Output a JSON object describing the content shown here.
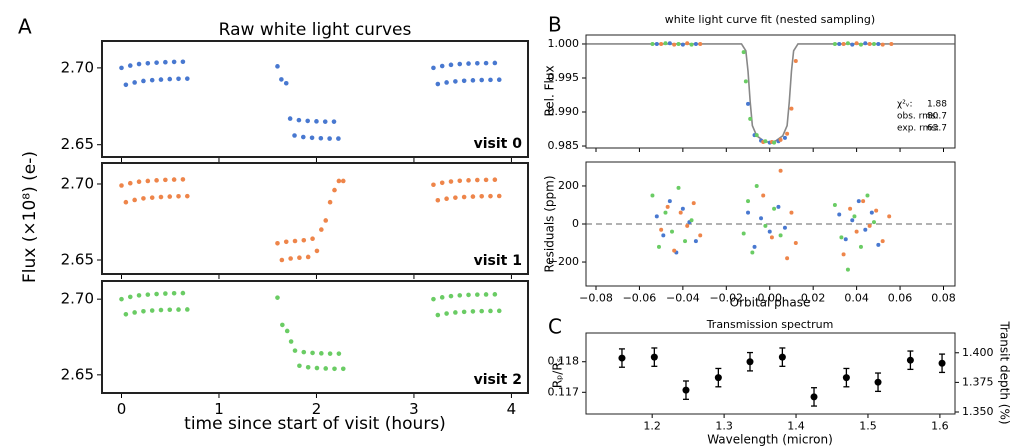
{
  "chart_data": [
    {
      "type": "scatter",
      "panel_label": "A",
      "title": "Raw white light curves",
      "annotation": "visit 0",
      "xlim": [
        -0.2,
        4.17
      ],
      "xticks": [
        0,
        1,
        2,
        3,
        4
      ],
      "ylim": [
        2.642,
        2.7175
      ],
      "yticks": [
        2.65,
        {
          "value": 2.7,
          "label": "2.70"
        }
      ],
      "series": [
        {
          "color": "#4878d0",
          "x": [
            0,
            0.09,
            0.18,
            0.27,
            0.36,
            0.45,
            0.54,
            0.63,
            0.045,
            0.135,
            0.225,
            0.315,
            0.405,
            0.495,
            0.585,
            0.675,
            1.6,
            1.64,
            1.69,
            1.73,
            1.82,
            1.91,
            2.0,
            2.09,
            2.18,
            1.775,
            1.865,
            1.955,
            2.045,
            2.135,
            2.225,
            3.2,
            3.29,
            3.38,
            3.47,
            3.56,
            3.65,
            3.74,
            3.83,
            3.245,
            3.335,
            3.425,
            3.515,
            3.605,
            3.695,
            3.785,
            3.875
          ],
          "values": [
            2.7,
            2.7015,
            2.7025,
            2.703,
            2.7034,
            2.7037,
            2.7039,
            2.704,
            2.689,
            2.6905,
            2.6915,
            2.692,
            2.6924,
            2.6927,
            2.6929,
            2.693,
            2.701,
            2.6925,
            2.69,
            2.667,
            2.666,
            2.6655,
            2.6652,
            2.665,
            2.665,
            2.656,
            2.655,
            2.6545,
            2.6542,
            2.654,
            2.654,
            2.7,
            2.7012,
            2.702,
            2.7025,
            2.7028,
            2.703,
            2.7031,
            2.7032,
            2.6895,
            2.6905,
            2.6912,
            2.6916,
            2.6919,
            2.6921,
            2.6922,
            2.6923
          ]
        }
      ]
    },
    {
      "type": "scatter",
      "ylabel": "Flux (×10⁸) (e-)",
      "annotation": "visit 1",
      "xlim": [
        -0.2,
        4.17
      ],
      "xticks": [
        0,
        1,
        2,
        3,
        4
      ],
      "ylim": [
        2.6408,
        2.7138
      ],
      "yticks": [
        2.65,
        {
          "value": 2.7,
          "label": "2.70"
        }
      ],
      "series": [
        {
          "color": "#ee854a",
          "x": [
            0,
            0.09,
            0.18,
            0.27,
            0.36,
            0.45,
            0.54,
            0.63,
            0.045,
            0.135,
            0.225,
            0.315,
            0.405,
            0.495,
            0.585,
            0.675,
            1.6,
            1.69,
            1.78,
            1.87,
            1.96,
            2.05,
            2.14,
            2.23,
            1.645,
            1.735,
            1.825,
            1.915,
            2.005,
            2.095,
            2.185,
            2.275,
            3.2,
            3.29,
            3.38,
            3.47,
            3.56,
            3.65,
            3.74,
            3.83,
            3.245,
            3.335,
            3.425,
            3.515,
            3.605,
            3.695,
            3.785,
            3.875
          ],
          "values": [
            2.699,
            2.7005,
            2.7015,
            2.702,
            2.7024,
            2.7027,
            2.7029,
            2.703,
            2.688,
            2.6895,
            2.6905,
            2.691,
            2.6914,
            2.6917,
            2.6919,
            2.692,
            2.661,
            2.662,
            2.6625,
            2.663,
            2.664,
            2.67,
            2.688,
            2.702,
            2.65,
            2.651,
            2.6515,
            2.652,
            2.656,
            2.676,
            2.696,
            2.702,
            2.6995,
            2.7008,
            2.7016,
            2.7021,
            2.7024,
            2.7026,
            2.7027,
            2.7028,
            2.6893,
            2.6903,
            2.691,
            2.6914,
            2.6917,
            2.6919,
            2.692,
            2.6921
          ]
        }
      ]
    },
    {
      "type": "scatter",
      "xlabel": "time since start of visit (hours)",
      "annotation": "visit 2",
      "xlim": [
        -0.2,
        4.17
      ],
      "xticks": [
        0,
        1,
        2,
        3,
        4
      ],
      "ylim": [
        2.638,
        2.712
      ],
      "yticks": [
        2.65,
        {
          "value": 2.7,
          "label": "2.70"
        }
      ],
      "series": [
        {
          "color": "#6acc64",
          "x": [
            0,
            0.09,
            0.18,
            0.27,
            0.36,
            0.45,
            0.54,
            0.63,
            0.045,
            0.135,
            0.225,
            0.315,
            0.405,
            0.495,
            0.585,
            0.675,
            1.6,
            1.65,
            1.7,
            1.74,
            1.78,
            1.87,
            1.96,
            2.05,
            2.14,
            2.23,
            1.825,
            1.915,
            2.005,
            2.095,
            2.185,
            2.275,
            3.2,
            3.29,
            3.38,
            3.47,
            3.56,
            3.65,
            3.74,
            3.83,
            3.245,
            3.335,
            3.425,
            3.515,
            3.605,
            3.695,
            3.785,
            3.875
          ],
          "values": [
            2.7,
            2.7015,
            2.7025,
            2.703,
            2.7034,
            2.7037,
            2.7039,
            2.704,
            2.69,
            2.6912,
            2.692,
            2.6925,
            2.6928,
            2.693,
            2.6931,
            2.6932,
            2.701,
            2.683,
            2.679,
            2.672,
            2.666,
            2.665,
            2.6645,
            2.6642,
            2.664,
            2.664,
            2.656,
            2.655,
            2.6545,
            2.6542,
            2.654,
            2.654,
            2.7,
            2.7012,
            2.702,
            2.7025,
            2.7028,
            2.703,
            2.7031,
            2.7032,
            2.6895,
            2.6905,
            2.6912,
            2.6916,
            2.6919,
            2.6921,
            2.6922,
            2.6923
          ]
        }
      ]
    },
    {
      "type": "scatter",
      "panel_label": "B",
      "title": "white light curve fit (nested sampling)",
      "ylabel": "Rel. Flux",
      "xlim": [
        -0.0846,
        0.0853
      ],
      "xticks": [
        -0.08,
        -0.06,
        -0.04,
        -0.02,
        0,
        0.02,
        0.04,
        0.06,
        0.08
      ],
      "ylim": [
        0.98471,
        1.00132
      ],
      "yticks": [
        0.985,
        {
          "value": 0.99,
          "label": "0.990"
        },
        0.995,
        {
          "value": 1,
          "label": "1.000"
        }
      ],
      "model": {
        "color": "#888888",
        "x": [
          -0.085,
          -0.013,
          -0.011,
          -0.01,
          -0.009,
          -0.008,
          -0.006,
          -0.003,
          0,
          0.003,
          0.006,
          0.008,
          0.009,
          0.01,
          0.011,
          0.013,
          0.085
        ],
        "values": [
          1,
          1,
          0.999,
          0.996,
          0.9915,
          0.988,
          0.9865,
          0.9858,
          0.9855,
          0.9858,
          0.9865,
          0.988,
          0.9915,
          0.996,
          0.999,
          1,
          1
        ]
      },
      "series": [
        {
          "color": "#4878d0",
          "x": [
            -0.052,
            -0.046,
            -0.04,
            -0.034,
            -0.01,
            -0.007,
            -0.004,
            0,
            0.004,
            0.007,
            0.032,
            0.038,
            0.044,
            0.05
          ],
          "values": [
            1,
            1.0001,
            0.9999,
            1,
            0.9912,
            0.9866,
            0.9858,
            0.9855,
            0.9857,
            0.9862,
            1,
            0.9999,
            1.0001,
            1
          ]
        },
        {
          "color": "#ee854a",
          "x": [
            -0.05,
            -0.044,
            -0.038,
            -0.032,
            -0.003,
            0.001,
            0.005,
            0.008,
            0.01,
            0.012,
            0.034,
            0.04,
            0.046,
            0.052,
            0.056
          ],
          "values": [
            1,
            0.9999,
            1.0001,
            1,
            0.9856,
            0.9856,
            0.9859,
            0.9868,
            0.9905,
            0.9975,
            1,
            1.0001,
            1,
            0.9999,
            1
          ]
        },
        {
          "color": "#6acc64",
          "x": [
            -0.054,
            -0.048,
            -0.042,
            -0.036,
            -0.012,
            -0.011,
            -0.009,
            -0.006,
            -0.002,
            0.002,
            0.03,
            0.036,
            0.042,
            0.048
          ],
          "values": [
            1,
            1.0001,
            1,
            0.9999,
            0.9988,
            0.9945,
            0.989,
            0.9866,
            0.9857,
            0.9855,
            1,
            1.0001,
            0.9999,
            1
          ]
        }
      ],
      "stats": [
        {
          "label": "χ²ᵥ:",
          "value": 1.88
        },
        {
          "label": "obs. rms:",
          "value": 80.7
        },
        {
          "label": "exp. rms:",
          "value": 63.7
        }
      ]
    },
    {
      "type": "scatter",
      "ylabel": "Residuals (ppm)",
      "xlabel": "Orbital phase",
      "xlim": [
        -0.0846,
        0.0853
      ],
      "xticks": [
        {
          "value": -0.08,
          "label": "−0.08"
        },
        {
          "value": -0.06,
          "label": "−0.06"
        },
        {
          "value": -0.04,
          "label": "−0.04"
        },
        {
          "value": -0.02,
          "label": "−0.02"
        },
        {
          "value": 0,
          "label": "0.00"
        },
        0.02,
        0.04,
        0.06,
        0.08
      ],
      "ylim": [
        -326,
        326
      ],
      "yticks": [
        {
          "value": -200,
          "label": "−200"
        },
        0,
        200
      ],
      "hline": 0,
      "series": [
        {
          "color": "#4878d0",
          "x": [
            -0.052,
            -0.049,
            -0.046,
            -0.043,
            -0.04,
            -0.037,
            -0.034,
            -0.01,
            -0.007,
            -0.004,
            0,
            0.004,
            0.007,
            0.032,
            0.035,
            0.038,
            0.041,
            0.044,
            0.047,
            0.05
          ],
          "values": [
            40,
            -60,
            120,
            -150,
            80,
            10,
            -90,
            60,
            -120,
            30,
            -40,
            90,
            -20,
            50,
            -80,
            20,
            120,
            -30,
            60,
            -110
          ]
        },
        {
          "color": "#ee854a",
          "x": [
            -0.05,
            -0.047,
            -0.044,
            -0.041,
            -0.038,
            -0.035,
            -0.032,
            -0.003,
            0.001,
            0.005,
            0.008,
            0.01,
            0.012,
            0.034,
            0.037,
            0.04,
            0.043,
            0.046,
            0.049,
            0.052,
            0.055
          ],
          "values": [
            -30,
            90,
            -140,
            60,
            -10,
            110,
            -60,
            150,
            -70,
            280,
            -180,
            60,
            -100,
            -160,
            80,
            -40,
            120,
            -10,
            70,
            -90,
            40
          ]
        },
        {
          "color": "#6acc64",
          "x": [
            -0.054,
            -0.051,
            -0.048,
            -0.045,
            -0.042,
            -0.039,
            -0.036,
            -0.012,
            -0.01,
            -0.008,
            -0.006,
            -0.002,
            0.002,
            0.005,
            0.03,
            0.033,
            0.036,
            0.039,
            0.042,
            0.045,
            0.048
          ],
          "values": [
            150,
            -120,
            60,
            -40,
            190,
            -90,
            20,
            -50,
            120,
            -150,
            200,
            -10,
            80,
            -60,
            100,
            -70,
            -240,
            40,
            -120,
            150,
            10
          ]
        }
      ]
    },
    {
      "type": "errorbar",
      "panel_label": "C",
      "title": "Transmission spectrum",
      "xlabel": "Wavelength (micron)",
      "ylabel": "Rₚ/Rₛ",
      "y2label": "Transit depth (%)",
      "xlim": [
        1.108,
        1.621
      ],
      "xticks": [
        1.2,
        1.3,
        1.4,
        1.5,
        1.6
      ],
      "ylim": [
        0.11629,
        0.11894
      ],
      "yticks": [
        0.117,
        0.118
      ],
      "y2lim": [
        1.3483,
        1.4167
      ],
      "y2ticks": [
        {
          "value": 1.35,
          "label": "1.350"
        },
        1.375,
        {
          "value": 1.4,
          "label": "1.400"
        }
      ],
      "series": [
        {
          "color": "#000000",
          "x": [
            1.158,
            1.203,
            1.247,
            1.292,
            1.336,
            1.381,
            1.425,
            1.47,
            1.514,
            1.559,
            1.603
          ],
          "values": [
            0.11812,
            0.11815,
            0.11707,
            0.11748,
            0.118,
            0.11815,
            0.11685,
            0.11748,
            0.11733,
            0.11805,
            0.11795
          ],
          "errors": [
            0.0003,
            0.0003,
            0.0003,
            0.0003,
            0.0003,
            0.0003,
            0.0003,
            0.0003,
            0.0003,
            0.0003,
            0.0003
          ]
        }
      ]
    }
  ]
}
